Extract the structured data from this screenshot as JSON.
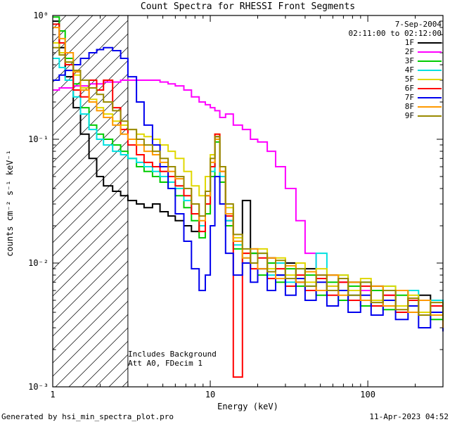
{
  "page": {
    "footer_left": "Generated by hsi_min_spectra_plot.pro",
    "footer_right": "11-Apr-2023 04:52"
  },
  "chart_data": {
    "type": "line",
    "style": "step-histogram, log-log",
    "title": "Count Spectra for RHESSI Front Segments",
    "xlabel": "Energy (keV)",
    "ylabel": "counts cm⁻² s⁻¹ keV⁻¹",
    "xscale": "log",
    "yscale": "log",
    "xlim": [
      1,
      300
    ],
    "ylim": [
      0.001,
      1
    ],
    "grid": false,
    "x_ticks": [
      {
        "v": 1,
        "label": "1"
      },
      {
        "v": 10,
        "label": "10"
      },
      {
        "v": 100,
        "label": "100"
      }
    ],
    "y_ticks": [
      {
        "v": 1,
        "label": "10⁰"
      },
      {
        "v": 0.1,
        "label": "10⁻¹"
      },
      {
        "v": 0.01,
        "label": "10⁻²"
      },
      {
        "v": 0.001,
        "label": "10⁻³"
      }
    ],
    "legend": {
      "position": "top-right",
      "date": "7-Sep-2004",
      "time": "02:11:00 to 02:12:00"
    },
    "annotations": [
      "Includes Background",
      "Att A0, FDecim 1"
    ],
    "hatch_region": {
      "x_min": 1,
      "x_max": 3
    },
    "x": [
      1.0,
      1.1,
      1.2,
      1.35,
      1.5,
      1.7,
      1.9,
      2.1,
      2.4,
      2.7,
      3.0,
      3.4,
      3.8,
      4.3,
      4.8,
      5.4,
      6.0,
      6.8,
      7.6,
      8.5,
      9.3,
      10.0,
      10.7,
      11.5,
      12.5,
      14,
      16,
      18,
      20,
      23,
      26,
      30,
      35,
      40,
      47,
      55,
      65,
      75,
      90,
      105,
      125,
      150,
      180,
      210,
      250,
      300
    ],
    "series": [
      {
        "name": "1F",
        "color": "#000000",
        "values": [
          0.9,
          0.55,
          0.32,
          0.18,
          0.11,
          0.07,
          0.05,
          0.042,
          0.038,
          0.035,
          0.032,
          0.03,
          0.028,
          0.03,
          0.026,
          0.024,
          0.022,
          0.02,
          0.018,
          0.02,
          0.035,
          0.06,
          0.105,
          0.05,
          0.022,
          0.015,
          0.032,
          0.012,
          0.009,
          0.011,
          0.008,
          0.01,
          0.007,
          0.009,
          0.006,
          0.008,
          0.006,
          0.007,
          0.005,
          0.0065,
          0.005,
          0.006,
          0.0045,
          0.0055,
          0.004,
          0.0035
        ]
      },
      {
        "name": "2F",
        "color": "#ff00ff",
        "values": [
          0.25,
          0.26,
          0.26,
          0.27,
          0.27,
          0.28,
          0.28,
          0.29,
          0.29,
          0.3,
          0.3,
          0.3,
          0.3,
          0.3,
          0.29,
          0.28,
          0.27,
          0.25,
          0.22,
          0.2,
          0.19,
          0.18,
          0.17,
          0.15,
          0.16,
          0.13,
          0.12,
          0.1,
          0.095,
          0.08,
          0.06,
          0.04,
          0.022,
          0.012,
          0.008,
          0.0065,
          0.007,
          0.0055,
          0.006,
          0.005,
          0.0055,
          0.0045,
          0.005,
          0.004,
          0.0045,
          0.0035
        ]
      },
      {
        "name": "3F",
        "color": "#00cc00",
        "values": [
          0.97,
          0.75,
          0.45,
          0.28,
          0.18,
          0.13,
          0.11,
          0.1,
          0.09,
          0.08,
          0.07,
          0.06,
          0.055,
          0.05,
          0.045,
          0.04,
          0.035,
          0.028,
          0.022,
          0.016,
          0.025,
          0.05,
          0.095,
          0.045,
          0.02,
          0.013,
          0.01,
          0.012,
          0.008,
          0.01,
          0.007,
          0.009,
          0.0065,
          0.008,
          0.0055,
          0.007,
          0.005,
          0.0065,
          0.0045,
          0.006,
          0.0042,
          0.0055,
          0.004,
          0.005,
          0.0035,
          0.003
        ]
      },
      {
        "name": "4F",
        "color": "#00e0e0",
        "values": [
          0.45,
          0.38,
          0.3,
          0.22,
          0.16,
          0.12,
          0.1,
          0.09,
          0.08,
          0.075,
          0.07,
          0.065,
          0.06,
          0.055,
          0.05,
          0.045,
          0.04,
          0.032,
          0.025,
          0.02,
          0.03,
          0.055,
          0.1,
          0.05,
          0.022,
          0.014,
          0.011,
          0.013,
          0.012,
          0.008,
          0.01,
          0.007,
          0.009,
          0.0065,
          0.012,
          0.006,
          0.008,
          0.0055,
          0.007,
          0.005,
          0.0065,
          0.0045,
          0.006,
          0.004,
          0.005,
          0.0035
        ]
      },
      {
        "name": "5F",
        "color": "#e0d800",
        "values": [
          0.6,
          0.5,
          0.42,
          0.33,
          0.26,
          0.21,
          0.18,
          0.16,
          0.14,
          0.13,
          0.12,
          0.11,
          0.105,
          0.1,
          0.09,
          0.08,
          0.07,
          0.055,
          0.042,
          0.035,
          0.05,
          0.075,
          0.11,
          0.06,
          0.028,
          0.016,
          0.012,
          0.01,
          0.013,
          0.009,
          0.011,
          0.008,
          0.01,
          0.007,
          0.009,
          0.0065,
          0.008,
          0.006,
          0.0075,
          0.005,
          0.0065,
          0.0045,
          0.0055,
          0.004,
          0.0045,
          0.0035
        ]
      },
      {
        "name": "6F",
        "color": "#ff0000",
        "values": [
          0.85,
          0.6,
          0.4,
          0.25,
          0.22,
          0.3,
          0.25,
          0.3,
          0.18,
          0.12,
          0.09,
          0.075,
          0.065,
          0.06,
          0.055,
          0.05,
          0.042,
          0.035,
          0.025,
          0.018,
          0.03,
          0.06,
          0.11,
          0.055,
          0.024,
          0.0012,
          0.012,
          0.009,
          0.011,
          0.0075,
          0.009,
          0.0065,
          0.008,
          0.006,
          0.0075,
          0.0055,
          0.007,
          0.005,
          0.0065,
          0.0045,
          0.0055,
          0.004,
          0.005,
          0.0038,
          0.0045,
          0.0032
        ]
      },
      {
        "name": "7F",
        "color": "#0000ee",
        "values": [
          0.3,
          0.33,
          0.36,
          0.4,
          0.45,
          0.5,
          0.53,
          0.55,
          0.52,
          0.45,
          0.32,
          0.2,
          0.13,
          0.09,
          0.06,
          0.04,
          0.025,
          0.015,
          0.009,
          0.006,
          0.008,
          0.02,
          0.05,
          0.03,
          0.012,
          0.008,
          0.01,
          0.007,
          0.009,
          0.006,
          0.008,
          0.0055,
          0.0075,
          0.005,
          0.007,
          0.0045,
          0.006,
          0.004,
          0.0055,
          0.0038,
          0.005,
          0.0035,
          0.0045,
          0.003,
          0.004,
          0.0028
        ]
      },
      {
        "name": "8F",
        "color": "#ff9900",
        "values": [
          0.8,
          0.65,
          0.5,
          0.35,
          0.25,
          0.2,
          0.17,
          0.15,
          0.13,
          0.11,
          0.1,
          0.09,
          0.08,
          0.075,
          0.065,
          0.055,
          0.048,
          0.04,
          0.03,
          0.022,
          0.035,
          0.065,
          0.1,
          0.055,
          0.025,
          0.015,
          0.011,
          0.013,
          0.009,
          0.011,
          0.0075,
          0.0095,
          0.007,
          0.0085,
          0.006,
          0.008,
          0.0055,
          0.007,
          0.005,
          0.0065,
          0.0045,
          0.006,
          0.004,
          0.005,
          0.0038,
          0.003
        ]
      },
      {
        "name": "9F",
        "color": "#998a00",
        "values": [
          0.55,
          0.48,
          0.42,
          0.36,
          0.3,
          0.26,
          0.23,
          0.2,
          0.17,
          0.14,
          0.12,
          0.1,
          0.09,
          0.08,
          0.07,
          0.06,
          0.05,
          0.04,
          0.03,
          0.024,
          0.038,
          0.07,
          0.105,
          0.06,
          0.03,
          0.017,
          0.013,
          0.01,
          0.012,
          0.0085,
          0.0105,
          0.0075,
          0.009,
          0.0065,
          0.008,
          0.006,
          0.0075,
          0.0055,
          0.007,
          0.0048,
          0.006,
          0.0042,
          0.0052,
          0.0038,
          0.0048,
          0.0034
        ]
      }
    ]
  }
}
